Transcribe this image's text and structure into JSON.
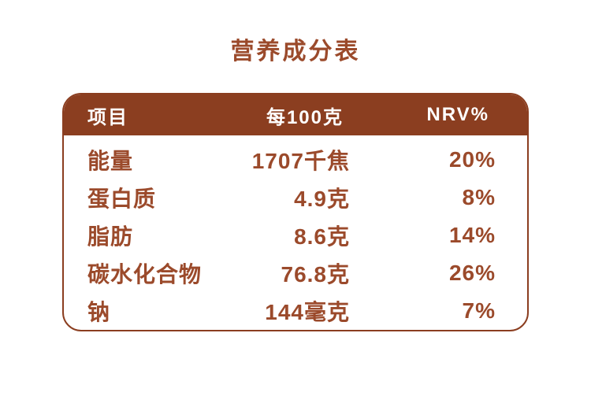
{
  "title": "营养成分表",
  "colors": {
    "accent_text": "#9B4A2B",
    "header_bg": "#8B3E20",
    "border": "#8B3E20",
    "header_text": "#FFFFFF",
    "page_bg": "#FFFFFF"
  },
  "table": {
    "headers": {
      "item": "项目",
      "per100g": "每100克",
      "nrv": "NRV%"
    },
    "rows": [
      {
        "label": "能量",
        "per100g": "1707千焦",
        "nrv": "20%"
      },
      {
        "label": "蛋白质",
        "per100g": "4.9克",
        "nrv": "8%"
      },
      {
        "label": "脂肪",
        "per100g": "8.6克",
        "nrv": "14%"
      },
      {
        "label": "碳水化合物",
        "per100g": "76.8克",
        "nrv": "26%"
      },
      {
        "label": "钠",
        "per100g": "144毫克",
        "nrv": "7%"
      }
    ]
  }
}
